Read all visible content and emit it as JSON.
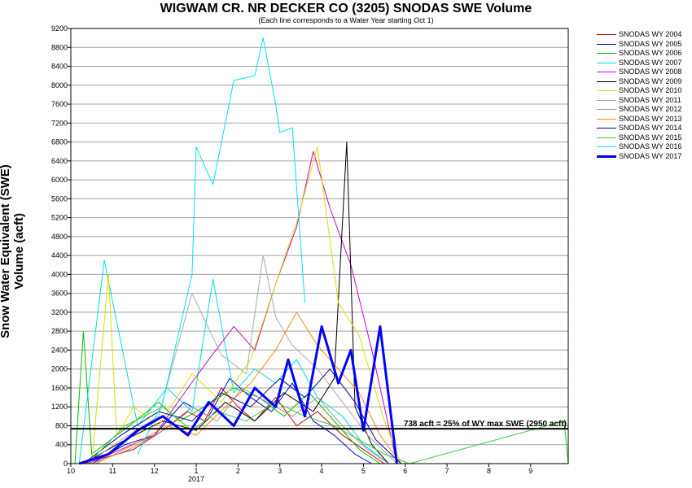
{
  "chart_data": {
    "type": "line",
    "title": "WIGWAM CR. NR DECKER CO (3205) SNODAS SWE Volume",
    "subtitle": "(Each line corresponds to a Water Year starting Oct 1)",
    "ylabel": "Snow Water Equivalent (SWE) Volume (acft)",
    "xlabel": "",
    "ylim": [
      0,
      9200
    ],
    "yticks": [
      0,
      400,
      800,
      1200,
      1600,
      2000,
      2400,
      2800,
      3200,
      3600,
      4000,
      4400,
      4800,
      5200,
      5600,
      6000,
      6400,
      6800,
      7200,
      7600,
      8000,
      8400,
      8800,
      9200
    ],
    "xlim": [
      10.0,
      21.9
    ],
    "xticks": [
      {
        "pos": 10,
        "label": "10"
      },
      {
        "pos": 11,
        "label": "11"
      },
      {
        "pos": 12,
        "label": "12"
      },
      {
        "pos": 13,
        "label": "1"
      },
      {
        "pos": 14,
        "label": "2"
      },
      {
        "pos": 15,
        "label": "3"
      },
      {
        "pos": 16,
        "label": "4"
      },
      {
        "pos": 17,
        "label": "5"
      },
      {
        "pos": 18,
        "label": "6"
      },
      {
        "pos": 19,
        "label": "7"
      },
      {
        "pos": 20,
        "label": "8"
      },
      {
        "pos": 21,
        "label": "9"
      }
    ],
    "year_label": "2017",
    "grid": true,
    "legend_position": "right",
    "reference_line": {
      "value": 738,
      "label": "738 acft = 25% of WY max SWE (2950 acft)",
      "color": "#000000"
    },
    "series": [
      {
        "name": "SNODAS WY 2004",
        "color": "#cc0000",
        "x": [
          10.3,
          11.5,
          12.2,
          12.8,
          13.2,
          13.6,
          14.0,
          14.4,
          14.9,
          15.4,
          15.9,
          16.5,
          17.0,
          17.5
        ],
        "y": [
          0,
          300,
          700,
          1100,
          900,
          1600,
          1200,
          900,
          1400,
          800,
          1100,
          600,
          300,
          0
        ]
      },
      {
        "name": "SNODAS WY 2005",
        "color": "#0000cc",
        "x": [
          10.5,
          11.3,
          12.0,
          12.7,
          13.3,
          13.8,
          14.3,
          14.8,
          15.3,
          15.8,
          16.3,
          16.8,
          17.2
        ],
        "y": [
          0,
          400,
          600,
          1300,
          1000,
          1800,
          1400,
          1100,
          1700,
          900,
          600,
          200,
          0
        ]
      },
      {
        "name": "SNODAS WY 2006",
        "color": "#00bb00",
        "x": [
          10.1,
          10.3,
          10.5,
          11.4,
          12.1,
          12.6,
          13.2,
          13.9,
          14.5,
          15.1,
          15.7,
          16.4,
          16.9,
          17.4
        ],
        "y": [
          0,
          2800,
          200,
          800,
          1300,
          900,
          1200,
          1600,
          1400,
          1000,
          1500,
          800,
          300,
          0
        ]
      },
      {
        "name": "SNODAS WY 2007",
        "color": "#00dddd",
        "x": [
          10.2,
          10.8,
          11.6,
          12.3,
          12.9,
          13.4,
          13.9,
          14.4,
          14.9,
          15.4,
          15.9,
          16.5,
          17.0,
          17.6
        ],
        "y": [
          0,
          4300,
          800,
          1600,
          1100,
          3900,
          1500,
          2000,
          1700,
          2200,
          1400,
          1000,
          400,
          0
        ]
      },
      {
        "name": "SNODAS WY 2008",
        "color": "#cc00cc",
        "x": [
          10.4,
          11.2,
          12.0,
          12.8,
          13.3,
          13.9,
          14.4,
          14.9,
          15.4,
          15.8,
          16.2,
          16.7,
          17.2,
          17.8
        ],
        "y": [
          0,
          300,
          600,
          1600,
          2200,
          2900,
          2400,
          3800,
          5000,
          6600,
          5400,
          4200,
          2400,
          0
        ]
      },
      {
        "name": "SNODAS WY 2009",
        "color": "#000000",
        "x": [
          10.3,
          11.3,
          12.2,
          13.0,
          13.7,
          14.4,
          15.1,
          15.8,
          16.3,
          16.6,
          16.8,
          17.2,
          17.6
        ],
        "y": [
          0,
          500,
          900,
          700,
          1300,
          900,
          1500,
          1100,
          1800,
          6800,
          1200,
          400,
          0
        ]
      },
      {
        "name": "SNODAS WY 2010",
        "color": "#dddd00",
        "x": [
          10.5,
          10.9,
          11.1,
          11.5,
          12.1,
          12.9,
          13.6,
          14.3,
          14.9,
          15.4,
          15.9,
          16.4,
          16.9,
          17.5,
          17.9
        ],
        "y": [
          0,
          4000,
          600,
          1200,
          800,
          1900,
          1300,
          2200,
          3800,
          5100,
          6700,
          3400,
          2700,
          900,
          0
        ]
      },
      {
        "name": "SNODAS WY 2011",
        "color": "#aaaaaa",
        "x": [
          10.4,
          11.2,
          12.1,
          12.9,
          13.6,
          14.2,
          14.6,
          14.9,
          15.3,
          15.9,
          16.5,
          17.1,
          17.8
        ],
        "y": [
          0,
          500,
          1000,
          3600,
          2300,
          1900,
          4400,
          3100,
          2500,
          2000,
          1300,
          600,
          0
        ]
      },
      {
        "name": "SNODAS WY 2012",
        "color": "#999999",
        "x": [
          10.5,
          11.4,
          12.2,
          12.9,
          13.5,
          14.1,
          14.7,
          15.3,
          15.9,
          16.5,
          17.1,
          17.6
        ],
        "y": [
          0,
          300,
          700,
          1200,
          900,
          1600,
          1300,
          1000,
          1400,
          800,
          300,
          0
        ]
      },
      {
        "name": "SNODAS WY 2013",
        "color": "#ff8800",
        "x": [
          10.6,
          11.5,
          12.3,
          13.0,
          13.7,
          14.3,
          14.9,
          15.4,
          15.9,
          16.4,
          16.9,
          17.4,
          17.9
        ],
        "y": [
          0,
          400,
          800,
          600,
          1200,
          1700,
          2400,
          3200,
          2500,
          2000,
          1500,
          600,
          0
        ]
      },
      {
        "name": "SNODAS WY 2014",
        "color": "#000099",
        "x": [
          10.3,
          11.2,
          12.1,
          12.9,
          13.6,
          14.3,
          15.0,
          15.6,
          16.2,
          16.8,
          17.3,
          17.9
        ],
        "y": [
          0,
          600,
          1100,
          900,
          1500,
          1200,
          1800,
          1400,
          2000,
          1300,
          500,
          0
        ]
      },
      {
        "name": "SNODAS WY 2015",
        "color": "#33cc33",
        "x": [
          10.4,
          11.3,
          12.2,
          12.9,
          13.5,
          14.2,
          14.9,
          15.6,
          16.3,
          16.9,
          17.5,
          18.1,
          21.8,
          21.9
        ],
        "y": [
          0,
          800,
          1200,
          700,
          1100,
          900,
          1300,
          1000,
          800,
          500,
          200,
          0,
          900,
          0
        ]
      },
      {
        "name": "SNODAS WY 2016",
        "color": "#00e5e5",
        "x": [
          11.6,
          12.2,
          12.9,
          13.0,
          13.4,
          13.9,
          14.4,
          14.6,
          14.9,
          15.0,
          15.3,
          15.6
        ],
        "y": [
          200,
          1300,
          4000,
          6700,
          5900,
          8100,
          8200,
          9000,
          7600,
          7000,
          7100,
          3400
        ]
      },
      {
        "name": "SNODAS WY 2017",
        "color": "#0000ff",
        "x": [
          10.2,
          10.9,
          11.6,
          12.2,
          12.8,
          13.3,
          13.9,
          14.4,
          14.9,
          15.2,
          15.6,
          16.0,
          16.4,
          16.7,
          17.0,
          17.4,
          17.8
        ],
        "y": [
          0,
          200,
          700,
          1000,
          600,
          1300,
          800,
          1600,
          1200,
          2200,
          1000,
          2900,
          1700,
          2400,
          700,
          2900,
          0
        ]
      }
    ]
  }
}
